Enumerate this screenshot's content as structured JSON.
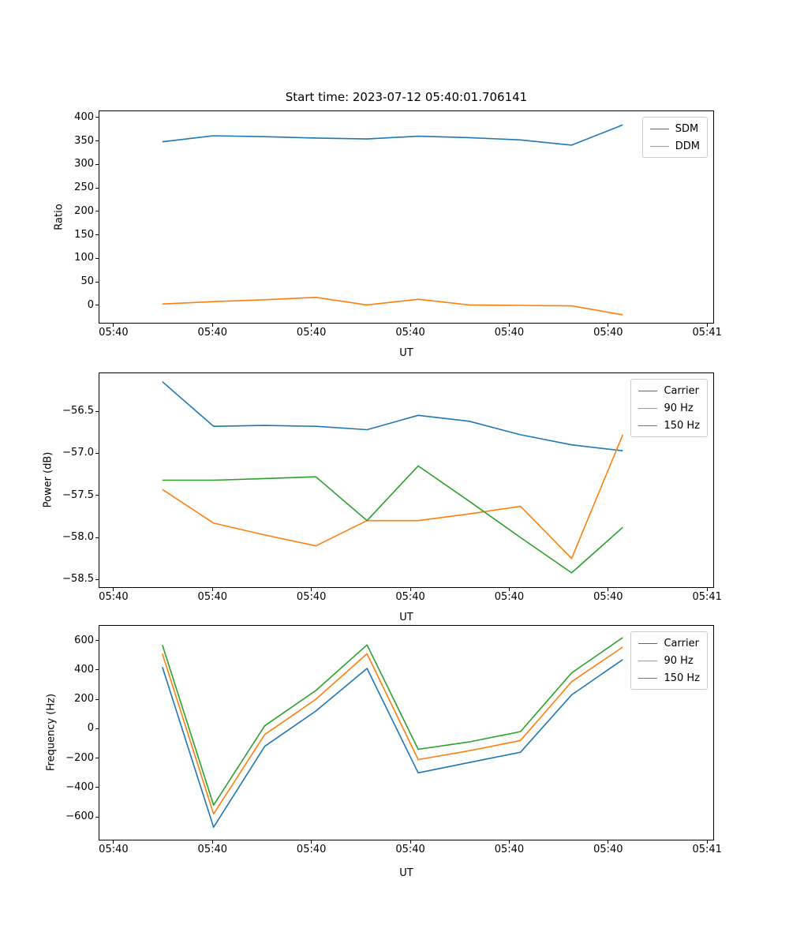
{
  "figure": {
    "title": "Start time: 2023-07-12 05:40:01.706141"
  },
  "chart_data": [
    {
      "type": "line",
      "title": "Start time: 2023-07-12 05:40:01.706141",
      "xlabel": "UT",
      "ylabel": "Ratio",
      "x_tick_labels": [
        "05:40",
        "05:40",
        "05:40",
        "05:40",
        "05:40",
        "05:40",
        "05:41"
      ],
      "y_tick_values": [
        0,
        50,
        100,
        150,
        200,
        250,
        300,
        350,
        400
      ],
      "y_tick_labels": [
        "0",
        "50",
        "100",
        "150",
        "200",
        "250",
        "300",
        "350",
        "400"
      ],
      "ylim": [
        -37,
        413
      ],
      "grid": false,
      "legend_position": "upper right",
      "series": [
        {
          "name": "SDM",
          "color": "#1f77b4",
          "values": [
            348,
            361,
            359,
            356,
            354,
            360,
            357,
            352,
            341,
            384
          ]
        },
        {
          "name": "DDM",
          "color": "#ff7f0e",
          "values": [
            3,
            8,
            12,
            17,
            1,
            13,
            1,
            0,
            -1,
            -20
          ]
        }
      ]
    },
    {
      "type": "line",
      "title": "",
      "xlabel": "UT",
      "ylabel": "Power (dB)",
      "x_tick_labels": [
        "05:40",
        "05:40",
        "05:40",
        "05:40",
        "05:40",
        "05:40",
        "05:41"
      ],
      "y_tick_values": [
        -58.5,
        -58.0,
        -57.5,
        -57.0,
        -56.5
      ],
      "y_tick_labels": [
        "−58.5",
        "−58.0",
        "−57.5",
        "−57.0",
        "−56.5"
      ],
      "ylim": [
        -58.59,
        -56.05
      ],
      "grid": false,
      "legend_position": "upper right",
      "series": [
        {
          "name": "Carrier",
          "color": "#1f77b4",
          "values": [
            -56.15,
            -56.68,
            -56.67,
            -56.68,
            -56.72,
            -56.55,
            -56.62,
            -56.78,
            -56.9,
            -56.97
          ]
        },
        {
          "name": "90 Hz",
          "color": "#ff7f0e",
          "values": [
            -57.43,
            -57.83,
            -57.97,
            -58.1,
            -57.8,
            -57.8,
            -57.72,
            -57.63,
            -58.25,
            -56.78
          ]
        },
        {
          "name": "150 Hz",
          "color": "#2ca02c",
          "values": [
            -57.32,
            -57.32,
            -57.3,
            -57.28,
            -57.8,
            -57.15,
            -57.57,
            -58.0,
            -58.42,
            -57.88
          ]
        }
      ]
    },
    {
      "type": "line",
      "title": "",
      "xlabel": "UT",
      "ylabel": "Frequency (Hz)",
      "x_tick_labels": [
        "05:40",
        "05:40",
        "05:40",
        "05:40",
        "05:40",
        "05:40",
        "05:41"
      ],
      "y_tick_values": [
        -600,
        -400,
        -200,
        0,
        200,
        400,
        600
      ],
      "y_tick_labels": [
        "−600",
        "−400",
        "−200",
        "0",
        "200",
        "400",
        "600"
      ],
      "ylim": [
        -755,
        700
      ],
      "grid": false,
      "legend_position": "upper right",
      "series": [
        {
          "name": "Carrier",
          "color": "#1f77b4",
          "values": [
            420,
            -670,
            -120,
            120,
            410,
            -300,
            -230,
            -160,
            230,
            470
          ]
        },
        {
          "name": "90 Hz",
          "color": "#ff7f0e",
          "values": [
            510,
            -580,
            -40,
            200,
            510,
            -210,
            -150,
            -80,
            320,
            555
          ]
        },
        {
          "name": "150 Hz",
          "color": "#2ca02c",
          "values": [
            570,
            -520,
            20,
            260,
            570,
            -140,
            -90,
            -20,
            380,
            620
          ]
        }
      ]
    }
  ]
}
